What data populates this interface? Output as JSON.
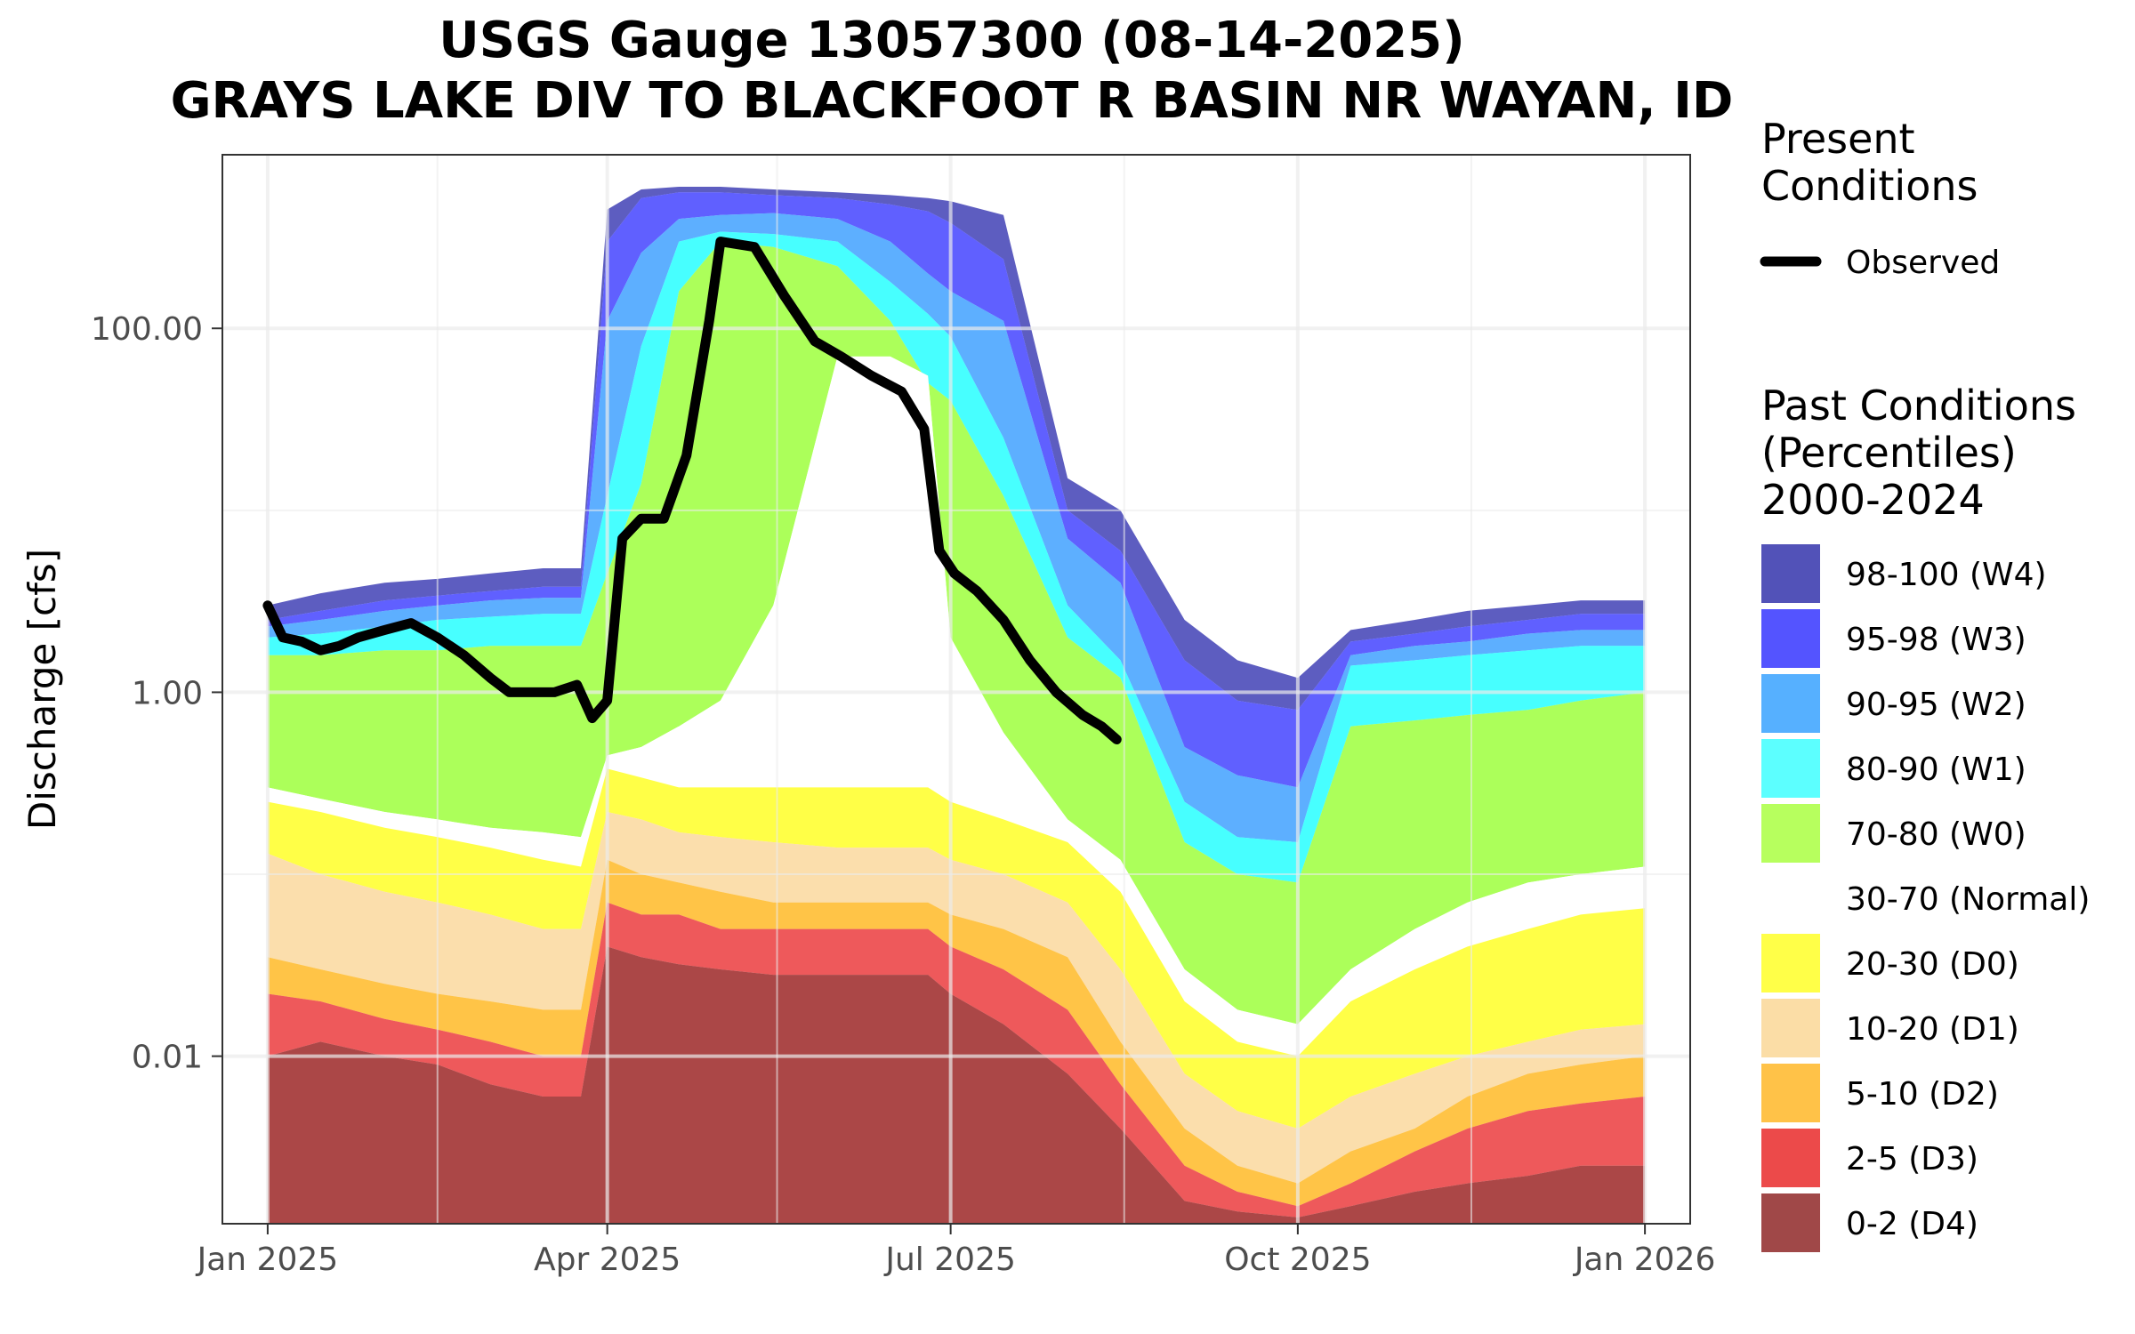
{
  "chart_data": {
    "type": "area",
    "title": "USGS Gauge 13057300 (08-14-2025)",
    "subtitle": "GRAYS LAKE DIV TO BLACKFOOT R BASIN NR WAYAN, ID",
    "xlabel": "",
    "ylabel": "Discharge [cfs]",
    "y_scale": "log10",
    "ylim": [
      0.0012,
      900
    ],
    "xlim": [
      "2024-12-20",
      "2026-01-13"
    ],
    "yticks": [
      0.01,
      1.0,
      100.0
    ],
    "ytick_labels": [
      "0.01",
      "1.00",
      "100.00"
    ],
    "xticks": [
      "2025-01-01",
      "2025-04-01",
      "2025-07-01",
      "2025-10-01",
      "2026-01-01"
    ],
    "xtick_labels": [
      "Jan 2025",
      "Apr 2025",
      "Jul 2025",
      "Oct 2025",
      "Jan 2026"
    ],
    "grid": true,
    "legend_position": "right",
    "dates": [
      "2025-01-01",
      "2025-01-15",
      "2025-02-01",
      "2025-02-15",
      "2025-03-01",
      "2025-03-15",
      "2025-03-25",
      "2025-04-01",
      "2025-04-10",
      "2025-04-20",
      "2025-05-01",
      "2025-05-15",
      "2025-06-01",
      "2025-06-15",
      "2025-06-25",
      "2025-07-01",
      "2025-07-15",
      "2025-08-01",
      "2025-08-15",
      "2025-09-01",
      "2025-09-15",
      "2025-10-01",
      "2025-10-15",
      "2025-11-01",
      "2025-11-15",
      "2025-12-01",
      "2025-12-15",
      "2026-01-01"
    ],
    "percentile_bands": [
      {
        "name": "98-100 (W4)",
        "color": "#1f1fa8",
        "values": [
          3.0,
          3.5,
          4.0,
          4.2,
          4.5,
          4.8,
          4.8,
          450,
          580,
          600,
          600,
          580,
          560,
          540,
          520,
          500,
          420,
          15,
          10,
          2.5,
          1.5,
          1.2,
          2.2,
          2.5,
          2.8,
          3.0,
          3.2,
          3.2
        ]
      },
      {
        "name": "95-98 (W3)",
        "color": "#2222ff",
        "values": [
          2.5,
          2.8,
          3.2,
          3.4,
          3.6,
          3.8,
          3.8,
          300,
          520,
          560,
          560,
          540,
          520,
          480,
          440,
          380,
          240,
          10,
          6,
          1.5,
          0.9,
          0.8,
          1.9,
          2.1,
          2.3,
          2.5,
          2.7,
          2.7
        ]
      },
      {
        "name": "90-95 (W2)",
        "color": "#1e90ff",
        "values": [
          2.3,
          2.5,
          2.8,
          3.0,
          3.2,
          3.3,
          3.3,
          110,
          260,
          400,
          420,
          430,
          400,
          300,
          200,
          160,
          110,
          7,
          4,
          0.5,
          0.35,
          0.3,
          1.6,
          1.8,
          1.9,
          2.1,
          2.2,
          2.2
        ]
      },
      {
        "name": "80-90 (W1)",
        "color": "#00ffff",
        "values": [
          2.0,
          2.1,
          2.3,
          2.5,
          2.6,
          2.7,
          2.7,
          12,
          80,
          300,
          340,
          330,
          300,
          180,
          120,
          90,
          25,
          3.0,
          1.5,
          0.25,
          0.16,
          0.15,
          1.4,
          1.5,
          1.6,
          1.7,
          1.8,
          1.8
        ]
      },
      {
        "name": "70-80 (W0)",
        "color": "#8cff1a",
        "values": [
          1.6,
          1.6,
          1.7,
          1.7,
          1.8,
          1.8,
          1.8,
          4.5,
          14,
          160,
          300,
          280,
          220,
          110,
          50,
          40,
          12,
          2.0,
          1.2,
          0.15,
          0.1,
          0.09,
          0.65,
          0.7,
          0.75,
          0.8,
          0.9,
          1.0
        ]
      },
      {
        "name": "30-70 (Normal)",
        "color": "#ffffff",
        "values": [
          0.3,
          0.26,
          0.22,
          0.2,
          0.18,
          0.17,
          0.16,
          0.45,
          0.5,
          0.65,
          0.9,
          3.0,
          70,
          70,
          55,
          2.0,
          0.6,
          0.2,
          0.12,
          0.03,
          0.018,
          0.015,
          0.03,
          0.05,
          0.07,
          0.09,
          0.1,
          0.11
        ]
      },
      {
        "name": "20-30 (D0)",
        "color": "#ffff00",
        "values": [
          0.25,
          0.22,
          0.18,
          0.16,
          0.14,
          0.12,
          0.11,
          0.38,
          0.34,
          0.3,
          0.3,
          0.3,
          0.3,
          0.3,
          0.3,
          0.25,
          0.2,
          0.15,
          0.08,
          0.02,
          0.012,
          0.01,
          0.02,
          0.03,
          0.04,
          0.05,
          0.06,
          0.065
        ]
      },
      {
        "name": "10-20 (D1)",
        "color": "#fad18c",
        "values": [
          0.13,
          0.1,
          0.08,
          0.07,
          0.06,
          0.05,
          0.05,
          0.22,
          0.2,
          0.17,
          0.16,
          0.15,
          0.14,
          0.14,
          0.14,
          0.12,
          0.1,
          0.07,
          0.03,
          0.008,
          0.005,
          0.004,
          0.006,
          0.008,
          0.01,
          0.012,
          0.014,
          0.015
        ]
      },
      {
        "name": "5-10 (D2)",
        "color": "#ffad00",
        "values": [
          0.035,
          0.03,
          0.025,
          0.022,
          0.02,
          0.018,
          0.018,
          0.12,
          0.1,
          0.09,
          0.08,
          0.07,
          0.07,
          0.07,
          0.07,
          0.06,
          0.05,
          0.035,
          0.012,
          0.004,
          0.0025,
          0.002,
          0.003,
          0.004,
          0.006,
          0.008,
          0.009,
          0.01
        ]
      },
      {
        "name": "2-5 (D3)",
        "color": "#e8191c",
        "values": [
          0.022,
          0.02,
          0.016,
          0.014,
          0.012,
          0.01,
          0.01,
          0.07,
          0.06,
          0.06,
          0.05,
          0.05,
          0.05,
          0.05,
          0.05,
          0.04,
          0.03,
          0.018,
          0.007,
          0.0025,
          0.0018,
          0.0015,
          0.002,
          0.003,
          0.004,
          0.005,
          0.0055,
          0.006
        ]
      },
      {
        "name": "0-2 (D4)",
        "color": "#8b0000",
        "values": [
          0.01,
          0.012,
          0.01,
          0.009,
          0.007,
          0.006,
          0.006,
          0.04,
          0.035,
          0.032,
          0.03,
          0.028,
          0.028,
          0.028,
          0.028,
          0.022,
          0.015,
          0.008,
          0.004,
          0.0016,
          0.0014,
          0.0013,
          0.0015,
          0.0018,
          0.002,
          0.0022,
          0.0025,
          0.0025
        ]
      }
    ],
    "observed": {
      "name": "Observed",
      "color": "#000000",
      "x": [
        "2025-01-01",
        "2025-01-05",
        "2025-01-10",
        "2025-01-15",
        "2025-01-20",
        "2025-01-25",
        "2025-02-01",
        "2025-02-08",
        "2025-02-15",
        "2025-02-22",
        "2025-03-01",
        "2025-03-06",
        "2025-03-12",
        "2025-03-18",
        "2025-03-24",
        "2025-03-28",
        "2025-04-01",
        "2025-04-05",
        "2025-04-10",
        "2025-04-16",
        "2025-04-22",
        "2025-04-28",
        "2025-05-01",
        "2025-05-10",
        "2025-05-18",
        "2025-05-26",
        "2025-06-02",
        "2025-06-10",
        "2025-06-18",
        "2025-06-24",
        "2025-06-28",
        "2025-07-02",
        "2025-07-08",
        "2025-07-15",
        "2025-07-22",
        "2025-07-29",
        "2025-08-05",
        "2025-08-10",
        "2025-08-14"
      ],
      "y": [
        3.0,
        2.0,
        1.9,
        1.7,
        1.8,
        2.0,
        2.2,
        2.4,
        2.0,
        1.6,
        1.2,
        1.0,
        1.0,
        1.0,
        1.1,
        0.72,
        0.9,
        7,
        9,
        9,
        20,
        110,
        300,
        280,
        150,
        85,
        70,
        55,
        45,
        28,
        6,
        4.5,
        3.6,
        2.5,
        1.5,
        1.0,
        0.75,
        0.65,
        0.55
      ]
    }
  },
  "legend": {
    "present_title": [
      "Present",
      "Conditions"
    ],
    "observed_label": "Observed",
    "past_title": [
      "Past Conditions",
      "(Percentiles)",
      "2000-2024"
    ],
    "items": [
      {
        "label": "98-100 (W4)",
        "color": "#5252b8"
      },
      {
        "label": "95-98 (W3)",
        "color": "#5454ff"
      },
      {
        "label": "90-95 (W2)",
        "color": "#56b0ff"
      },
      {
        "label": "80-90 (W1)",
        "color": "#5cffff"
      },
      {
        "label": "70-80 (W0)",
        "color": "#b7ff5e"
      },
      {
        "label": "30-70 (Normal)",
        "color": "#ffffff"
      },
      {
        "label": "20-30 (D0)",
        "color": "#ffff48"
      },
      {
        "label": "10-20 (D1)",
        "color": "#fbdda6"
      },
      {
        "label": "5-10 (D2)",
        "color": "#ffc248"
      },
      {
        "label": "2-5 (D3)",
        "color": "#ec4a4a"
      },
      {
        "label": "0-2 (D4)",
        "color": "#a04848"
      }
    ]
  }
}
